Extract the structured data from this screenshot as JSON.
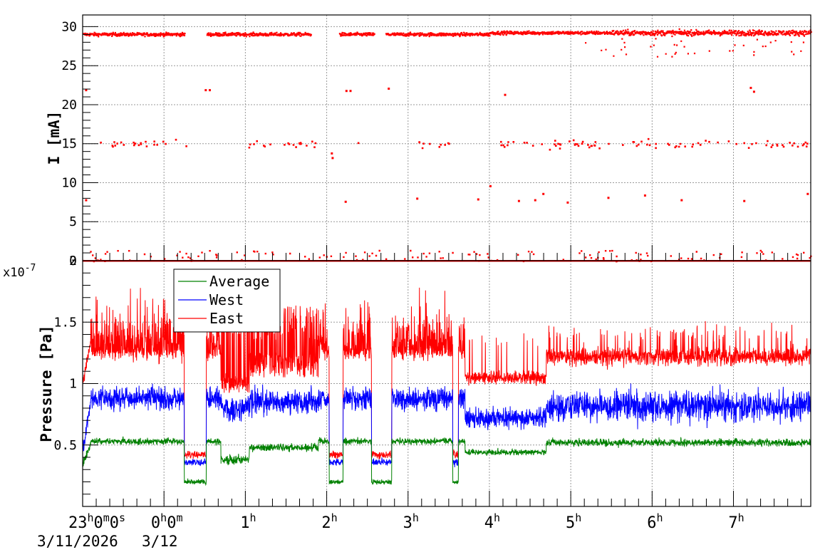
{
  "chart_data": [
    {
      "type": "scatter",
      "ylabel": "I [mA]",
      "ylim": [
        0,
        31.5
      ],
      "yticks": [
        0,
        5,
        10,
        15,
        20,
        25,
        30
      ],
      "xlim": [
        -1.0,
        7.95
      ],
      "grid": true,
      "color": "#ff0000",
      "bands": {
        "main_level": 29.1,
        "gaps": [
          [
            0.25,
            0.52
          ],
          [
            1.8,
            2.15
          ],
          [
            2.58,
            2.72
          ]
        ],
        "mid_level": 15.0,
        "low_level": 0.0
      },
      "outliers": [
        {
          "x": -0.97,
          "y": 21.9
        },
        {
          "x": 0.5,
          "y": 21.9
        },
        {
          "x": 0.55,
          "y": 21.9
        },
        {
          "x": 2.23,
          "y": 21.8
        },
        {
          "x": 2.28,
          "y": 21.8
        },
        {
          "x": 2.75,
          "y": 22.1
        },
        {
          "x": 4.18,
          "y": 21.3
        },
        {
          "x": 7.2,
          "y": 22.2
        },
        {
          "x": 7.24,
          "y": 21.7
        },
        {
          "x": -0.97,
          "y": 7.8
        },
        {
          "x": 2.22,
          "y": 7.6
        },
        {
          "x": 3.1,
          "y": 8.0
        },
        {
          "x": 3.85,
          "y": 7.9
        },
        {
          "x": 4.0,
          "y": 9.6
        },
        {
          "x": 4.35,
          "y": 7.7
        },
        {
          "x": 4.55,
          "y": 7.8
        },
        {
          "x": 4.65,
          "y": 8.6
        },
        {
          "x": 4.95,
          "y": 7.5
        },
        {
          "x": 5.45,
          "y": 8.1
        },
        {
          "x": 5.9,
          "y": 8.4
        },
        {
          "x": 6.35,
          "y": 7.8
        },
        {
          "x": 7.12,
          "y": 7.7
        },
        {
          "x": 7.9,
          "y": 8.6
        },
        {
          "x": 2.05,
          "y": 13.8
        },
        {
          "x": 2.06,
          "y": 13.2
        }
      ]
    },
    {
      "type": "line",
      "ylabel": "Pressure [Pa]",
      "yscale_label": "x10",
      "yscale_exponent": "-7",
      "ylim": [
        0,
        2
      ],
      "yticks": [
        0.5,
        1,
        1.5,
        2
      ],
      "xlim": [
        -1.0,
        7.95
      ],
      "grid": true,
      "series": [
        {
          "name": "Average",
          "color": "#008000"
        },
        {
          "name": "West",
          "color": "#0000ff"
        },
        {
          "name": "East",
          "color": "#ff0000"
        }
      ],
      "legend_position": "top-left"
    }
  ],
  "x_axis": {
    "start_label": "23",
    "start_label_minutes": "0",
    "start_label_seconds": "0",
    "major_ticks": [
      {
        "t": 0,
        "hour": "0",
        "minute": "0"
      },
      {
        "t": 1,
        "hour": "1"
      },
      {
        "t": 2,
        "hour": "2"
      },
      {
        "t": 3,
        "hour": "3"
      },
      {
        "t": 4,
        "hour": "4"
      },
      {
        "t": 5,
        "hour": "5"
      },
      {
        "t": 6,
        "hour": "6"
      },
      {
        "t": 7,
        "hour": "7"
      }
    ],
    "unit_h": "h",
    "unit_m": "m",
    "unit_s": "s",
    "date1": "3/11/2026",
    "date2": "3/12"
  }
}
